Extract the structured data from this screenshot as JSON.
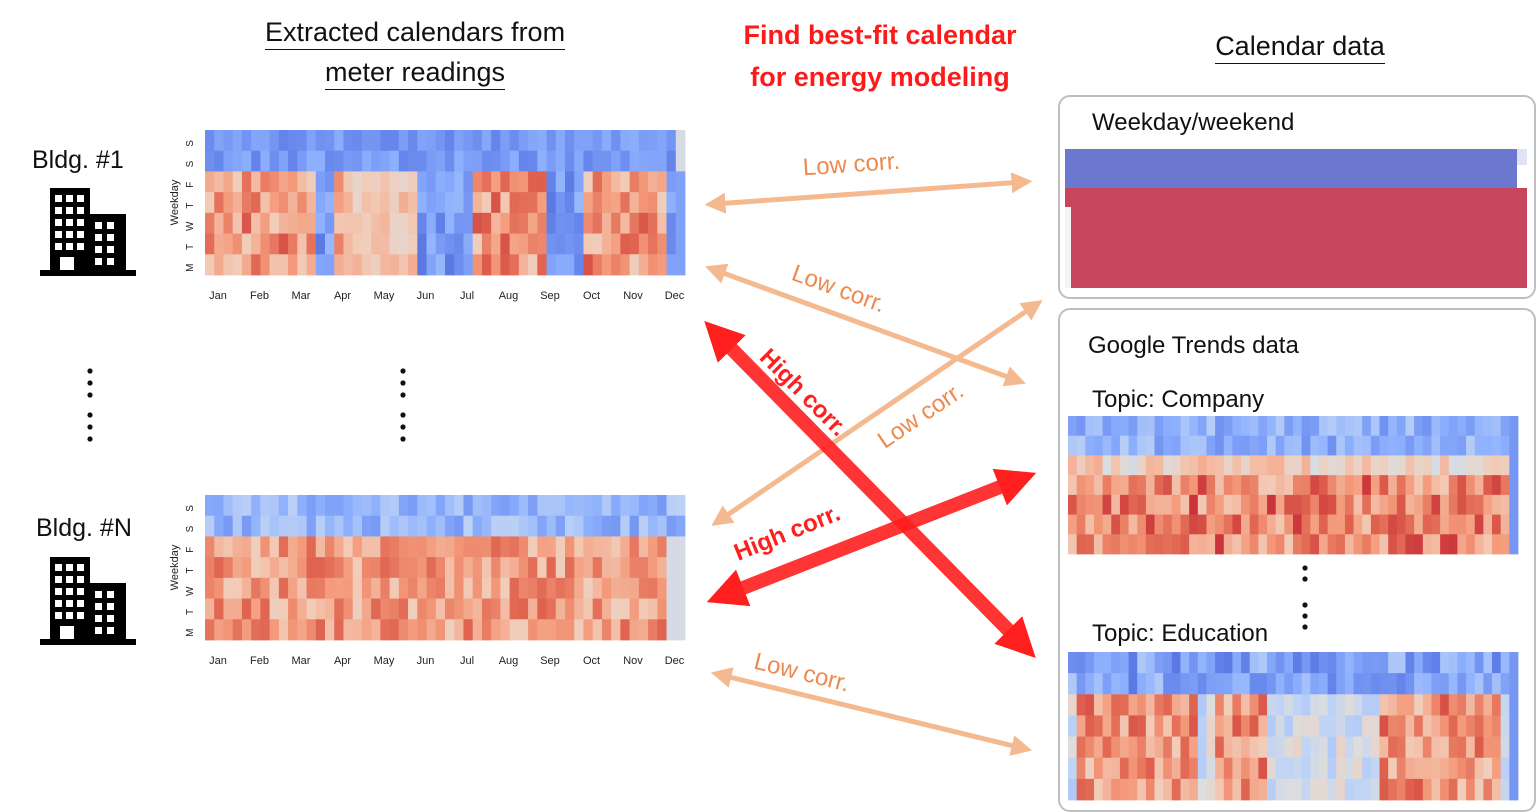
{
  "left_header": {
    "line1": "Extracted calendars from",
    "line2": "meter readings"
  },
  "center_title": {
    "line1": "Find best-fit calendar",
    "line2": "for energy modeling"
  },
  "right_header": "Calendar data",
  "buildings": [
    {
      "label": "Bldg. #1"
    },
    {
      "label": "Bldg. #N"
    }
  ],
  "heatmap_axis": {
    "ylabel": "Weekday",
    "days": [
      "M",
      "T",
      "W",
      "T",
      "F",
      "S",
      "S"
    ],
    "months": [
      "Jan",
      "Feb",
      "Mar",
      "Apr",
      "May",
      "Jun",
      "Jul",
      "Aug",
      "Sep",
      "Oct",
      "Nov",
      "Dec"
    ]
  },
  "panels": {
    "weekday_weekend": {
      "title": "Weekday/weekend"
    },
    "google_trends": {
      "title": "Google Trends data",
      "topic1": "Topic: Company",
      "topic2": "Topic: Education"
    }
  },
  "arrows": [
    {
      "label": "Low corr.",
      "strength": "low"
    },
    {
      "label": "Low corr.",
      "strength": "low"
    },
    {
      "label": "High corr.",
      "strength": "high"
    },
    {
      "label": "Low corr.",
      "strength": "low"
    },
    {
      "label": "High corr.",
      "strength": "high"
    },
    {
      "label": "Low corr.",
      "strength": "low"
    }
  ],
  "colors": {
    "low_arrow": "#f5b990",
    "low_text": "#ec8a4f",
    "high_arrow": "#ff1f1f",
    "weekend_blue": "#6c78cf",
    "weekday_red": "#c8465c"
  }
}
